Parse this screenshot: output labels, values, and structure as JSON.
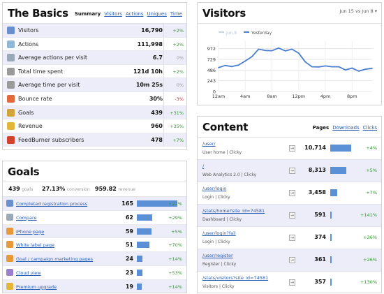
{
  "basics": {
    "title": "The Basics",
    "tabs": [
      {
        "label": "Summary",
        "current": true
      },
      {
        "label": "Visitors"
      },
      {
        "label": "Actions"
      },
      {
        "label": "Uniques"
      },
      {
        "label": "Time"
      }
    ],
    "rows": [
      {
        "icon": "visitors-icon",
        "color": "#6a8fcf",
        "label": "Visitors",
        "value": "16,790",
        "change": "+2%",
        "trend": "pos"
      },
      {
        "icon": "actions-icon",
        "color": "#8fb7d8",
        "label": "Actions",
        "value": "111,998",
        "change": "+2%",
        "trend": "pos"
      },
      {
        "icon": "average-actions-icon",
        "color": "#9aa9b8",
        "label": "Average actions per visit",
        "value": "6.7",
        "change": "0%",
        "trend": "neu"
      },
      {
        "icon": "clock-icon",
        "color": "#9a9a9a",
        "label": "Total time spent",
        "value": "121d 10h",
        "change": "+2%",
        "trend": "pos"
      },
      {
        "icon": "clock-icon",
        "color": "#9a9a9a",
        "label": "Average time per visit",
        "value": "10m 25s",
        "change": "0%",
        "trend": "neu"
      },
      {
        "icon": "bounce-icon",
        "color": "#e06a3a",
        "label": "Bounce rate",
        "value": "30%",
        "change": "-3%",
        "trend": "neg"
      },
      {
        "icon": "goals-icon",
        "color": "#d2a33a",
        "label": "Goals",
        "value": "439",
        "change": "+31%",
        "trend": "pos"
      },
      {
        "icon": "revenue-icon",
        "color": "#e3b63a",
        "label": "Revenue",
        "value": "960",
        "change": "+35%",
        "trend": "pos"
      },
      {
        "icon": "feedburner-icon",
        "color": "#d2412a",
        "label": "FeedBurner subscribers",
        "value": "478",
        "change": "+7%",
        "trend": "pos"
      }
    ]
  },
  "visitors": {
    "title": "Visitors",
    "range": "Jun 15 vs Jun 8",
    "legend_prev": "Jun 8",
    "legend_curr": "Yesterday"
  },
  "chart_data": {
    "type": "line",
    "x_labels": [
      "12am",
      "4am",
      "8am",
      "12pm",
      "4pm",
      "8pm"
    ],
    "y_ticks": [
      0,
      243,
      486,
      729,
      972
    ],
    "ylim": [
      0,
      1140
    ],
    "legend_position": "top-left",
    "grid": true,
    "series": [
      {
        "name": "Yesterday",
        "color": "#4a7fd0",
        "x": [
          0,
          1,
          2,
          3,
          4,
          5,
          6,
          7,
          8,
          9,
          10,
          11,
          12,
          13,
          14,
          15,
          16,
          17,
          18,
          19,
          20,
          21,
          22,
          23
        ],
        "values": [
          540,
          590,
          565,
          600,
          690,
          790,
          960,
          930,
          925,
          985,
          920,
          960,
          870,
          670,
          560,
          555,
          580,
          560,
          560,
          490,
          530,
          460,
          505,
          525
        ]
      }
    ]
  },
  "goals": {
    "title": "Goals",
    "summary": {
      "goals_value": "439",
      "goals_label": "goals",
      "conversion_value": "27.13%",
      "conversion_label": "conversion",
      "revenue_value": "959.82",
      "revenue_label": "revenue"
    },
    "rows": [
      {
        "icon": "user-goal-icon",
        "color": "#6a8fcf",
        "label": "Completed registration process",
        "value": "165",
        "bar": 1.0,
        "change": "+22%"
      },
      {
        "icon": "compare-icon",
        "color": "#9aa9b8",
        "label": "Compare",
        "value": "62",
        "bar": 0.376,
        "change": "+29%"
      },
      {
        "icon": "page-icon",
        "color": "#e89a3a",
        "label": "iPhone page",
        "value": "59",
        "bar": 0.358,
        "change": "+5%"
      },
      {
        "icon": "page-icon",
        "color": "#e89a3a",
        "label": "White label page",
        "value": "51",
        "bar": 0.309,
        "change": "+70%"
      },
      {
        "icon": "page-icon",
        "color": "#e89a3a",
        "label": "Goal / campaign marketing pages",
        "value": "24",
        "bar": 0.145,
        "change": "+14%"
      },
      {
        "icon": "cloud-icon",
        "color": "#9a7fcf",
        "label": "Cloud view",
        "value": "23",
        "bar": 0.139,
        "change": "+53%"
      },
      {
        "icon": "premium-icon",
        "color": "#e3b63a",
        "label": "Premium upgrade",
        "value": "19",
        "bar": 0.115,
        "change": "+14%"
      }
    ]
  },
  "content": {
    "title": "Content",
    "tabs": [
      {
        "label": "Pages",
        "current": true
      },
      {
        "label": "Downloads"
      },
      {
        "label": "Clicks"
      }
    ],
    "rows": [
      {
        "url": "/user/",
        "title": "User home | Clicky",
        "value": "10,714",
        "bar": 1.0,
        "change": "+4%"
      },
      {
        "url": "/",
        "title": "Web Analytics 2.0 | Clicky",
        "value": "8,313",
        "bar": 0.776,
        "change": "+5%"
      },
      {
        "url": "/user/login",
        "title": "Login | Clicky",
        "value": "3,458",
        "bar": 0.323,
        "change": "+7%"
      },
      {
        "url": "/stats/home?site_id=74581",
        "title": "Dashboard | Clicky",
        "value": "591",
        "bar": 0.055,
        "change": "+141%"
      },
      {
        "url": "/user/login?fail",
        "title": "Login | Clicky",
        "value": "374",
        "bar": 0.035,
        "change": "+36%"
      },
      {
        "url": "/user/register",
        "title": "Register | Clicky",
        "value": "361",
        "bar": 0.034,
        "change": "+26%"
      },
      {
        "url": "/stats/visitors?site_id=74581",
        "title": "Visitors | Clicky",
        "value": "357",
        "bar": 0.033,
        "change": "+130%"
      }
    ]
  }
}
